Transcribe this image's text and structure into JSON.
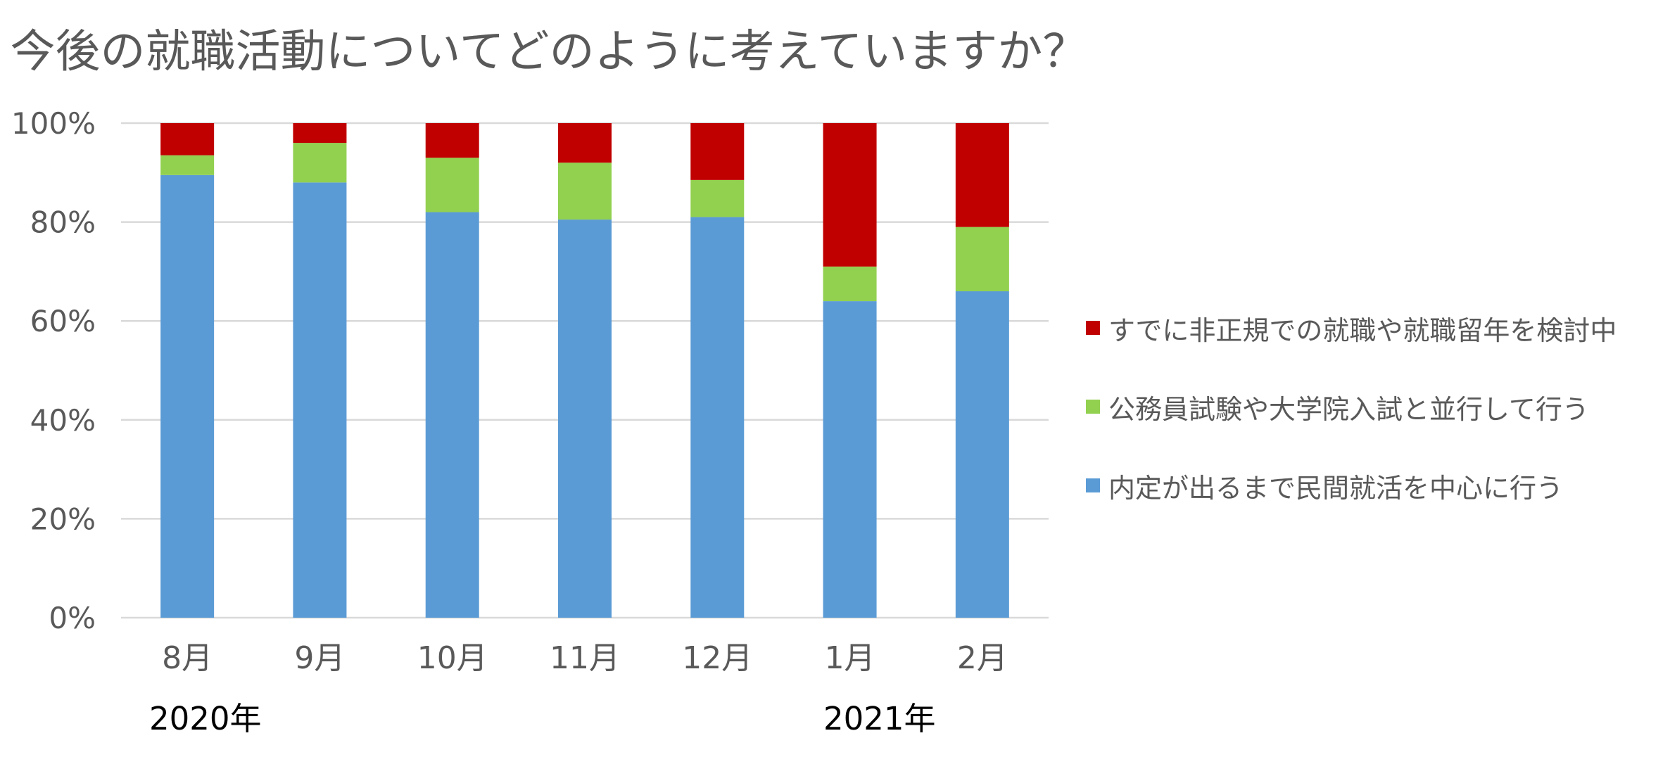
{
  "chart_data": {
    "type": "bar",
    "stacked": true,
    "title": "今後の就職活動についてどのように考えていますか？",
    "categories": [
      "8月",
      "9月",
      "10月",
      "11月",
      "12月",
      "1月",
      "2月"
    ],
    "group_labels": [
      "2020年",
      "2021年"
    ],
    "series": [
      {
        "name": "内定が出るまで民間就活を中心に行う",
        "color": "#5B9BD5",
        "values": [
          89.5,
          88,
          82,
          80.5,
          81,
          64,
          66
        ]
      },
      {
        "name": "公務員試験や大学院入試と並行して行う",
        "color": "#92D050",
        "values": [
          4,
          8,
          11,
          11.5,
          7.5,
          7,
          13
        ]
      },
      {
        "name": "すでに非正規での就職や就職留年を検討中",
        "color": "#C00000",
        "values": [
          6.5,
          4,
          7,
          8,
          11.5,
          29,
          21
        ]
      }
    ],
    "ylim": [
      0,
      100
    ],
    "yticks": [
      "0%",
      "20%",
      "40%",
      "60%",
      "80%",
      "100%"
    ],
    "grid": true,
    "legend_position": "right"
  }
}
